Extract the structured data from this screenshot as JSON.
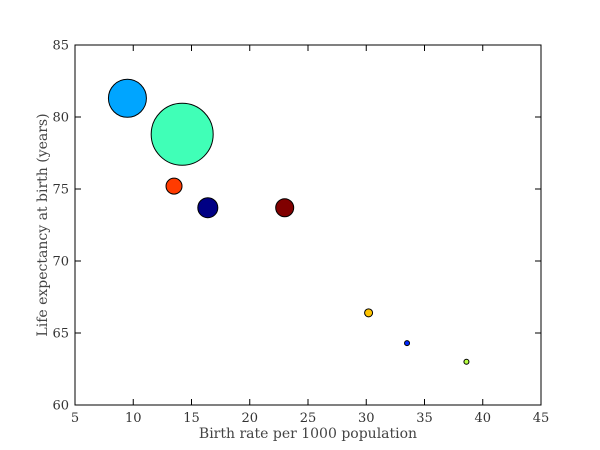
{
  "chart_data": {
    "type": "scatter",
    "title": "",
    "xlabel": "Birth rate per 1000 population",
    "ylabel": "Life expectancy at birth (years)",
    "xlim": [
      5,
      45
    ],
    "ylim": [
      60,
      85
    ],
    "xticks": [
      5,
      10,
      15,
      20,
      25,
      30,
      35,
      40,
      45
    ],
    "yticks": [
      60,
      65,
      70,
      75,
      80,
      85
    ],
    "grid": false,
    "legend": "none",
    "points": [
      {
        "x": 9.5,
        "y": 81.3,
        "size": 19,
        "color": "#00a5ff"
      },
      {
        "x": 14.2,
        "y": 78.8,
        "size": 31,
        "color": "#40ffb7"
      },
      {
        "x": 13.5,
        "y": 75.2,
        "size": 8,
        "color": "#ff3b00"
      },
      {
        "x": 16.4,
        "y": 73.7,
        "size": 10,
        "color": "#000084"
      },
      {
        "x": 23.0,
        "y": 73.7,
        "size": 9,
        "color": "#800000"
      },
      {
        "x": 30.2,
        "y": 66.4,
        "size": 4,
        "color": "#ffc400"
      },
      {
        "x": 33.5,
        "y": 64.3,
        "size": 2.5,
        "color": "#0028ff"
      },
      {
        "x": 38.6,
        "y": 63.0,
        "size": 2.5,
        "color": "#b7ff40"
      }
    ]
  }
}
